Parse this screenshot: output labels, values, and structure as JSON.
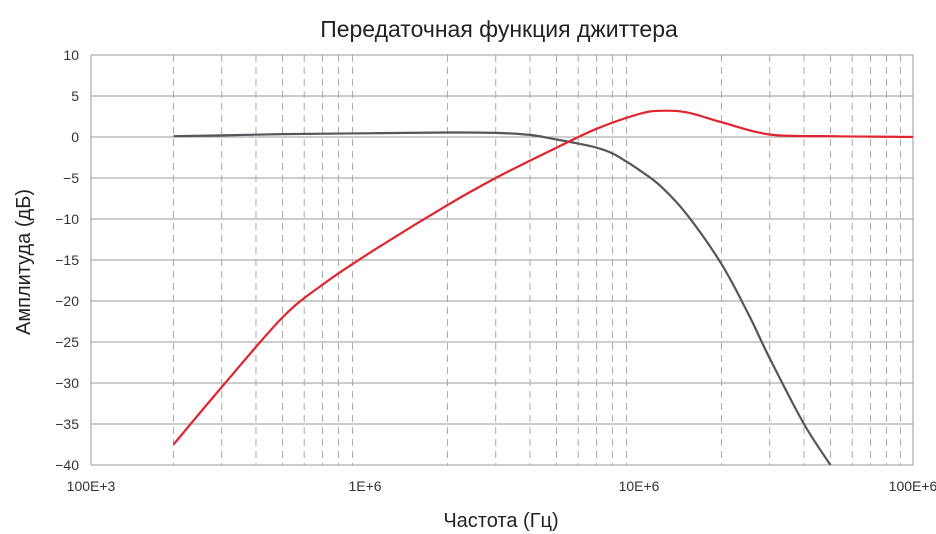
{
  "chart_data": {
    "type": "line",
    "title": "Передаточная функция джиттера",
    "xlabel": "Частота (Гц)",
    "ylabel": "Амплитуда (дБ)",
    "xscale": "log",
    "xlim": [
      100000,
      100000000
    ],
    "ylim": [
      -40,
      10
    ],
    "x_tick_values": [
      100000,
      1000000,
      10000000,
      100000000
    ],
    "x_tick_labels": [
      "100E+3",
      "1E+6",
      "10E+6",
      "100E+6"
    ],
    "y_ticks": [
      10,
      5,
      0,
      -5,
      -10,
      -15,
      -20,
      -25,
      -30,
      -35,
      -40
    ],
    "y_tick_labels": [
      "10",
      "5",
      "0",
      "−5",
      "−10",
      "−15",
      "−20",
      "−25",
      "−30",
      "−35",
      "−40"
    ],
    "grid": {
      "horizontal": "solid",
      "vertical_minor": "dashed"
    },
    "series": [
      {
        "color": "#55565a",
        "x": [
          200000,
          300000,
          500000,
          1000000,
          2000000,
          3000000,
          4000000,
          5000000,
          6000000,
          7000000,
          8000000,
          9000000,
          10000000,
          12000000,
          15000000,
          20000000,
          25000000,
          30000000,
          40000000,
          50000000
        ],
        "y": [
          0.1,
          0.2,
          0.35,
          0.45,
          0.55,
          0.5,
          0.25,
          -0.3,
          -0.8,
          -1.3,
          -2.0,
          -3.0,
          -4.0,
          -6.0,
          -9.5,
          -15.5,
          -21.5,
          -27.0,
          -35.0,
          -40.0
        ]
      },
      {
        "color": "#e0242f",
        "x": [
          200000,
          300000,
          500000,
          700000,
          1000000,
          2000000,
          3000000,
          5000000,
          7000000,
          10000000,
          12000000,
          15000000,
          20000000,
          30000000,
          50000000,
          70000000,
          100000000
        ],
        "y": [
          -37.5,
          -30.5,
          -22.0,
          -18.0,
          -14.5,
          -8.3,
          -5.0,
          -1.3,
          1.0,
          2.8,
          3.2,
          3.0,
          1.8,
          0.3,
          0.1,
          0.05,
          0.0
        ]
      }
    ]
  }
}
